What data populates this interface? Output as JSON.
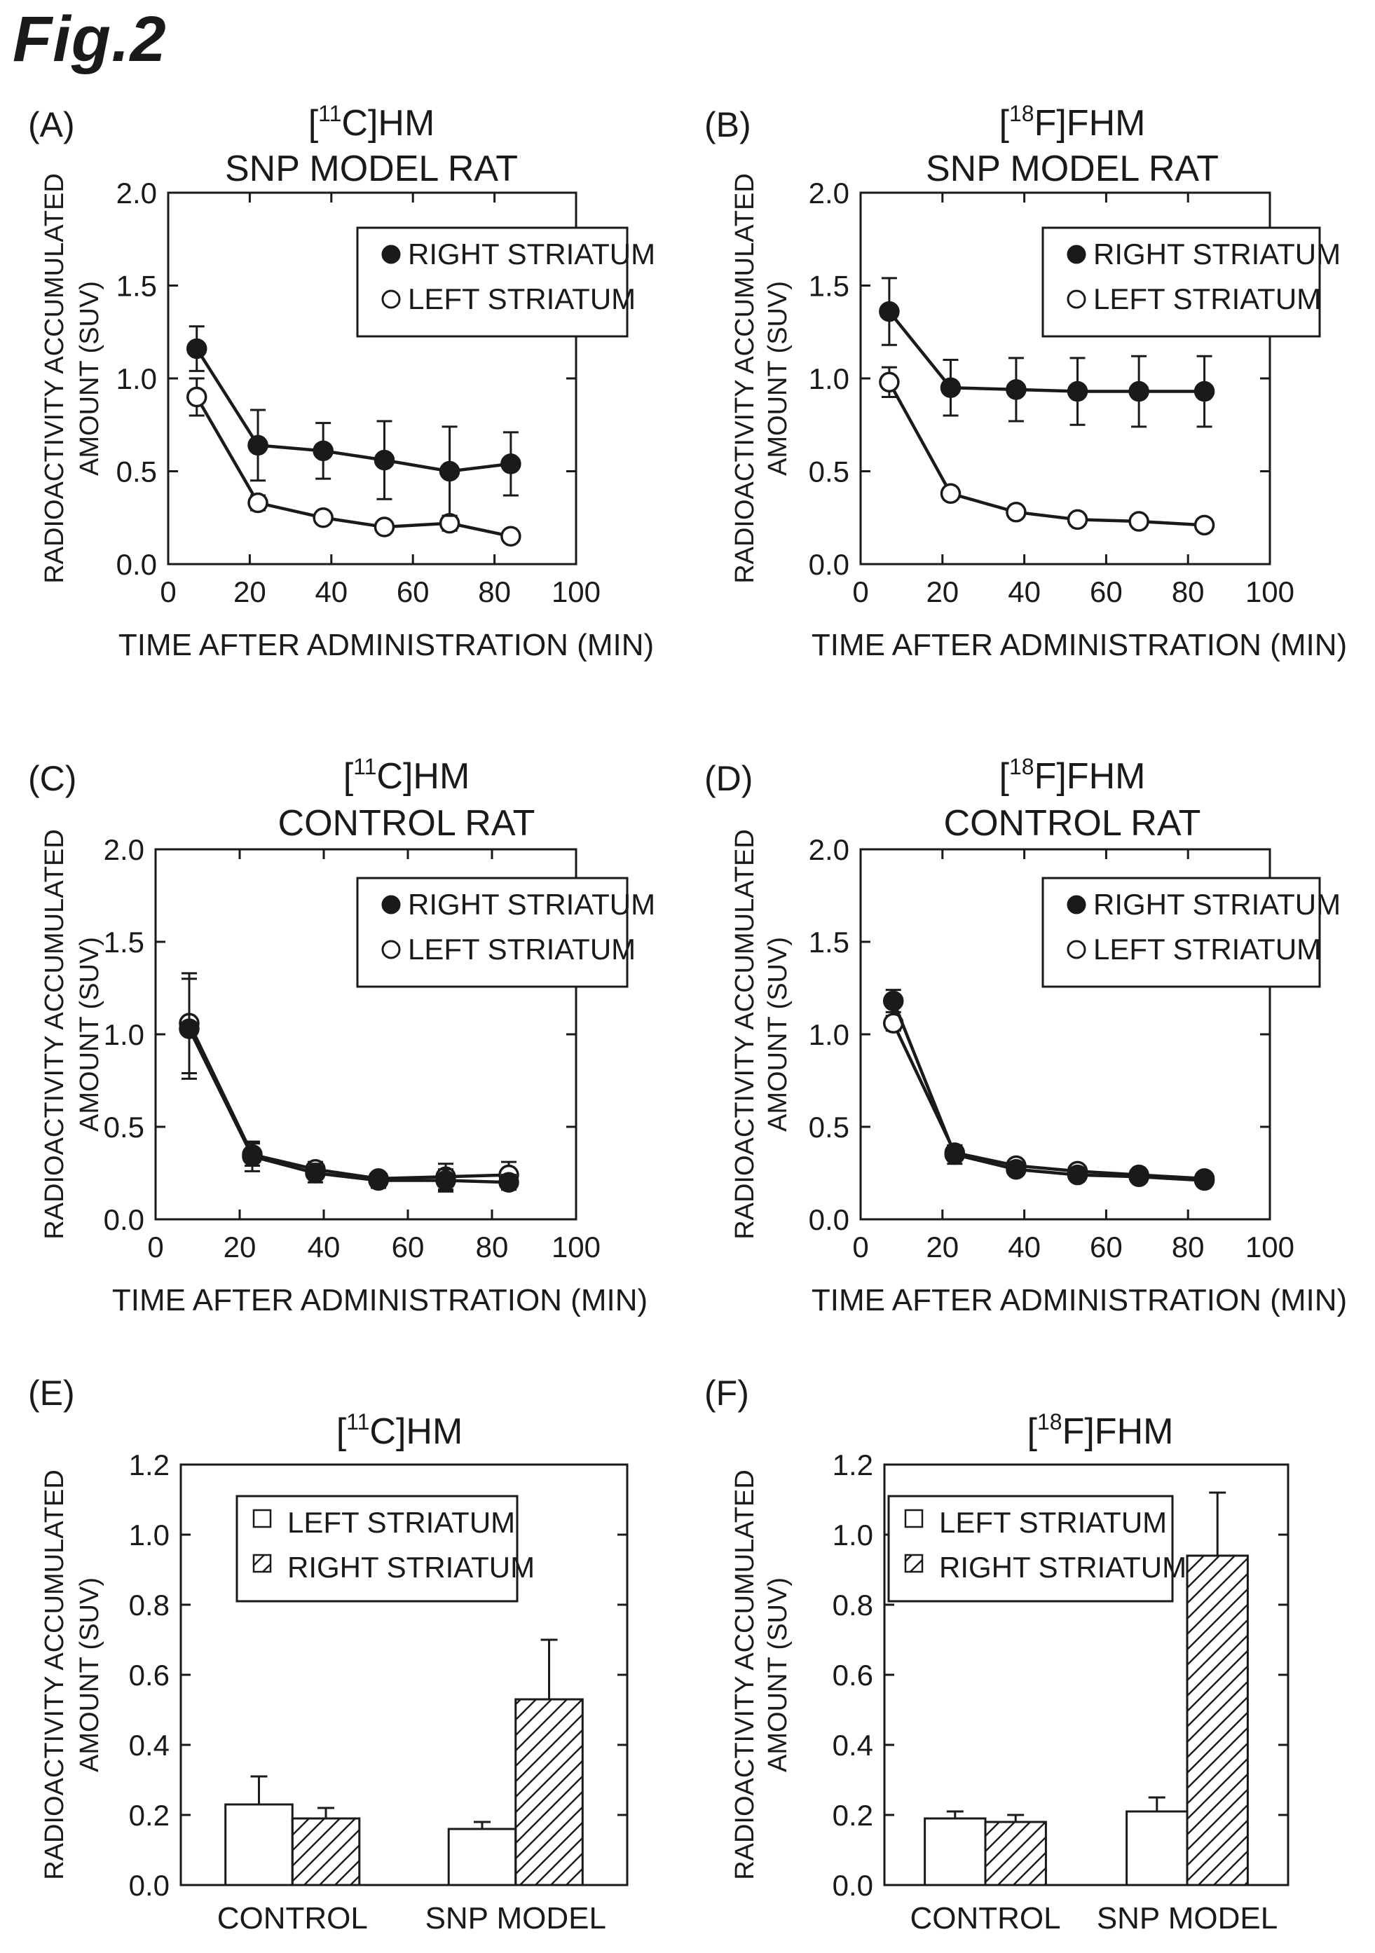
{
  "figure_title": "Fig.2",
  "chart_data": [
    {
      "id": "A",
      "panel_label": "(A)",
      "type": "line",
      "title_tracer": {
        "pre": "[",
        "sup": "11",
        "post": "C]HM"
      },
      "subtitle": "SNP MODEL RAT",
      "xlabel": "TIME AFTER ADMINISTRATION (MIN)",
      "ylabel": [
        "RADIOACTIVITY ACCUMULATED",
        "AMOUNT (SUV)"
      ],
      "xlim": [
        0,
        100
      ],
      "ylim": [
        0,
        2.0
      ],
      "xticks": [
        "0",
        "20",
        "40",
        "60",
        "80",
        "100"
      ],
      "yticks": [
        "0.0",
        "0.5",
        "1.0",
        "1.5",
        "2.0"
      ],
      "legend": "top-right",
      "series": [
        {
          "name": "RIGHT STRIATUM",
          "marker": "filled",
          "x": [
            7,
            22,
            38,
            53,
            69,
            84
          ],
          "y": [
            1.16,
            0.64,
            0.61,
            0.56,
            0.5,
            0.54
          ],
          "err": [
            0.12,
            0.19,
            0.15,
            0.21,
            0.24,
            0.17
          ]
        },
        {
          "name": "LEFT STRIATUM",
          "marker": "open",
          "x": [
            7,
            22,
            38,
            53,
            69,
            84
          ],
          "y": [
            0.9,
            0.33,
            0.25,
            0.2,
            0.22,
            0.15
          ],
          "err": [
            0.1,
            0.04,
            0.03,
            0.03,
            0.04,
            0.02
          ]
        }
      ]
    },
    {
      "id": "B",
      "panel_label": "(B)",
      "type": "line",
      "title_tracer": {
        "pre": "[",
        "sup": "18",
        "post": "F]FHM"
      },
      "subtitle": "SNP MODEL RAT",
      "xlabel": "TIME AFTER ADMINISTRATION (MIN)",
      "ylabel": [
        "RADIOACTIVITY ACCUMULATED",
        "AMOUNT (SUV)"
      ],
      "xlim": [
        0,
        100
      ],
      "ylim": [
        0,
        2.0
      ],
      "xticks": [
        "0",
        "20",
        "40",
        "60",
        "80",
        "100"
      ],
      "yticks": [
        "0.0",
        "0.5",
        "1.0",
        "1.5",
        "2.0"
      ],
      "legend": "top-right",
      "series": [
        {
          "name": "RIGHT STRIATUM",
          "marker": "filled",
          "x": [
            7,
            22,
            38,
            53,
            68,
            84
          ],
          "y": [
            1.36,
            0.95,
            0.94,
            0.93,
            0.93,
            0.93
          ],
          "err": [
            0.18,
            0.15,
            0.17,
            0.18,
            0.19,
            0.19
          ]
        },
        {
          "name": "LEFT STRIATUM",
          "marker": "open",
          "x": [
            7,
            22,
            38,
            53,
            68,
            84
          ],
          "y": [
            0.98,
            0.38,
            0.28,
            0.24,
            0.23,
            0.21
          ],
          "err": [
            0.08,
            0.02,
            0.02,
            0.03,
            0.02,
            0.03
          ]
        }
      ]
    },
    {
      "id": "C",
      "panel_label": "(C)",
      "type": "line",
      "title_tracer": {
        "pre": "[",
        "sup": "11",
        "post": "C]HM"
      },
      "subtitle": "CONTROL RAT",
      "xlabel": "TIME AFTER ADMINISTRATION (MIN)",
      "ylabel": [
        "RADIOACTIVITY ACCUMULATED",
        "AMOUNT (SUV)"
      ],
      "xlim": [
        0,
        100
      ],
      "ylim": [
        0,
        2.0
      ],
      "xticks": [
        "0",
        "20",
        "40",
        "60",
        "80",
        "100"
      ],
      "yticks": [
        "0.0",
        "0.5",
        "1.0",
        "1.5",
        "2.0"
      ],
      "legend": "top-right",
      "series": [
        {
          "name": "RIGHT STRIATUM",
          "marker": "filled",
          "x": [
            8,
            23,
            38,
            53,
            69,
            84
          ],
          "y": [
            1.03,
            0.34,
            0.25,
            0.21,
            0.21,
            0.2
          ],
          "err": [
            0.27,
            0.08,
            0.05,
            0.04,
            0.06,
            0.04
          ]
        },
        {
          "name": "LEFT STRIATUM",
          "marker": "open",
          "x": [
            8,
            23,
            38,
            53,
            69,
            84
          ],
          "y": [
            1.06,
            0.35,
            0.27,
            0.22,
            0.23,
            0.24
          ],
          "err": [
            0.27,
            0.06,
            0.04,
            0.03,
            0.07,
            0.07
          ]
        }
      ]
    },
    {
      "id": "D",
      "panel_label": "(D)",
      "type": "line",
      "title_tracer": {
        "pre": "[",
        "sup": "18",
        "post": "F]FHM"
      },
      "subtitle": "CONTROL RAT",
      "xlabel": "TIME AFTER ADMINISTRATION (MIN)",
      "ylabel": [
        "RADIOACTIVITY ACCUMULATED",
        "AMOUNT (SUV)"
      ],
      "xlim": [
        0,
        100
      ],
      "ylim": [
        0,
        2.0
      ],
      "xticks": [
        "0",
        "20",
        "40",
        "60",
        "80",
        "100"
      ],
      "yticks": [
        "0.0",
        "0.5",
        "1.0",
        "1.5",
        "2.0"
      ],
      "legend": "top-right",
      "series": [
        {
          "name": "RIGHT STRIATUM",
          "marker": "filled",
          "x": [
            8,
            23,
            38,
            53,
            68,
            84
          ],
          "y": [
            1.18,
            0.35,
            0.27,
            0.24,
            0.23,
            0.21
          ],
          "err": [
            0.06,
            0.05,
            0.03,
            0.03,
            0.02,
            0.02
          ]
        },
        {
          "name": "LEFT STRIATUM",
          "marker": "open",
          "x": [
            8,
            23,
            38,
            53,
            68,
            84
          ],
          "y": [
            1.06,
            0.36,
            0.29,
            0.26,
            0.24,
            0.22
          ],
          "err": [
            0.04,
            0.04,
            0.03,
            0.03,
            0.02,
            0.02
          ]
        }
      ]
    },
    {
      "id": "E",
      "panel_label": "(E)",
      "type": "bar",
      "title_tracer": {
        "pre": "[",
        "sup": "11",
        "post": "C]HM"
      },
      "subtitle": "",
      "xlabel": "",
      "ylabel": [
        "RADIOACTIVITY ACCUMULATED",
        "AMOUNT (SUV)"
      ],
      "ylim": [
        0,
        1.2
      ],
      "yticks": [
        "0.0",
        "0.2",
        "0.4",
        "0.6",
        "0.8",
        "1.0",
        "1.2"
      ],
      "categories": [
        "CONTROL",
        "SNP MODEL"
      ],
      "legend": "top-left",
      "series": [
        {
          "name": "LEFT STRIATUM",
          "pattern": "open",
          "values": [
            0.23,
            0.16
          ],
          "err": [
            0.08,
            0.02
          ]
        },
        {
          "name": "RIGHT STRIATUM",
          "pattern": "hatched",
          "values": [
            0.19,
            0.53
          ],
          "err": [
            0.03,
            0.17
          ]
        }
      ]
    },
    {
      "id": "F",
      "panel_label": "(F)",
      "type": "bar",
      "title_tracer": {
        "pre": "[",
        "sup": "18",
        "post": "F]FHM"
      },
      "subtitle": "",
      "xlabel": "",
      "ylabel": [
        "RADIOACTIVITY ACCUMULATED",
        "AMOUNT (SUV)"
      ],
      "ylim": [
        0,
        1.2
      ],
      "yticks": [
        "0.0",
        "0.2",
        "0.4",
        "0.6",
        "0.8",
        "1.0",
        "1.2"
      ],
      "categories": [
        "CONTROL",
        "SNP MODEL"
      ],
      "legend": "top-left",
      "series": [
        {
          "name": "LEFT STRIATUM",
          "pattern": "open",
          "values": [
            0.19,
            0.21
          ],
          "err": [
            0.02,
            0.04
          ]
        },
        {
          "name": "RIGHT STRIATUM",
          "pattern": "hatched",
          "values": [
            0.18,
            0.94
          ],
          "err": [
            0.02,
            0.18
          ]
        }
      ]
    }
  ]
}
